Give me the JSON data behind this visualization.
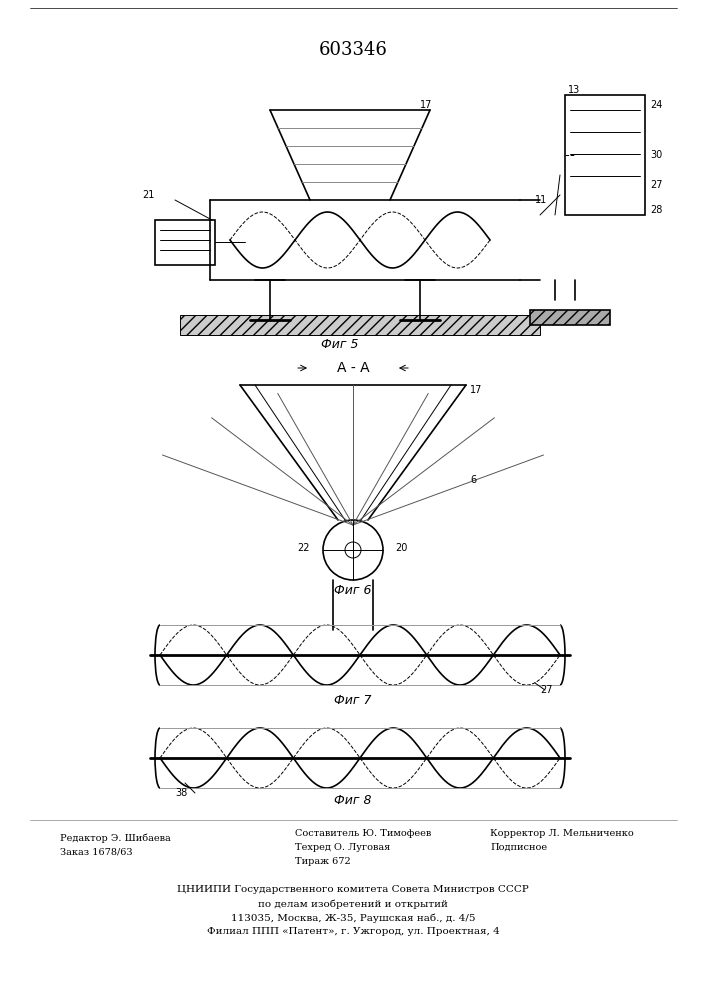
{
  "patent_number": "603346",
  "background_color": "#ffffff",
  "line_color": "#000000",
  "fig_width": 7.07,
  "fig_height": 10.0,
  "footer_lines": [
    "ЦНИИПИ Государственного комитета Совета Министров СССР",
    "по делам изобретений и открытий",
    "113035, Москва, Ж-35, Раушская наб., д. 4/5",
    "Филиал ППП «Патент», г. Ужгород, ул. Проектная, 4"
  ],
  "editor_left": [
    "Редактор Э. Шибаева",
    "Заказ 1678/63"
  ],
  "editor_center": [
    "Составитель Ю. Тимофеев",
    "Техред О. Луговая",
    "Тираж 672"
  ],
  "editor_right": [
    "Корректор Л. Мельниченко",
    "Подписное"
  ],
  "fig_labels": [
    "Фиг 5",
    "А - А",
    "Фиг 6",
    "Фиг 7",
    "Фиг 8"
  ],
  "label_numbers": [
    "17",
    "21",
    "22",
    "11",
    "13",
    "24",
    "30",
    "27",
    "28",
    "38"
  ]
}
